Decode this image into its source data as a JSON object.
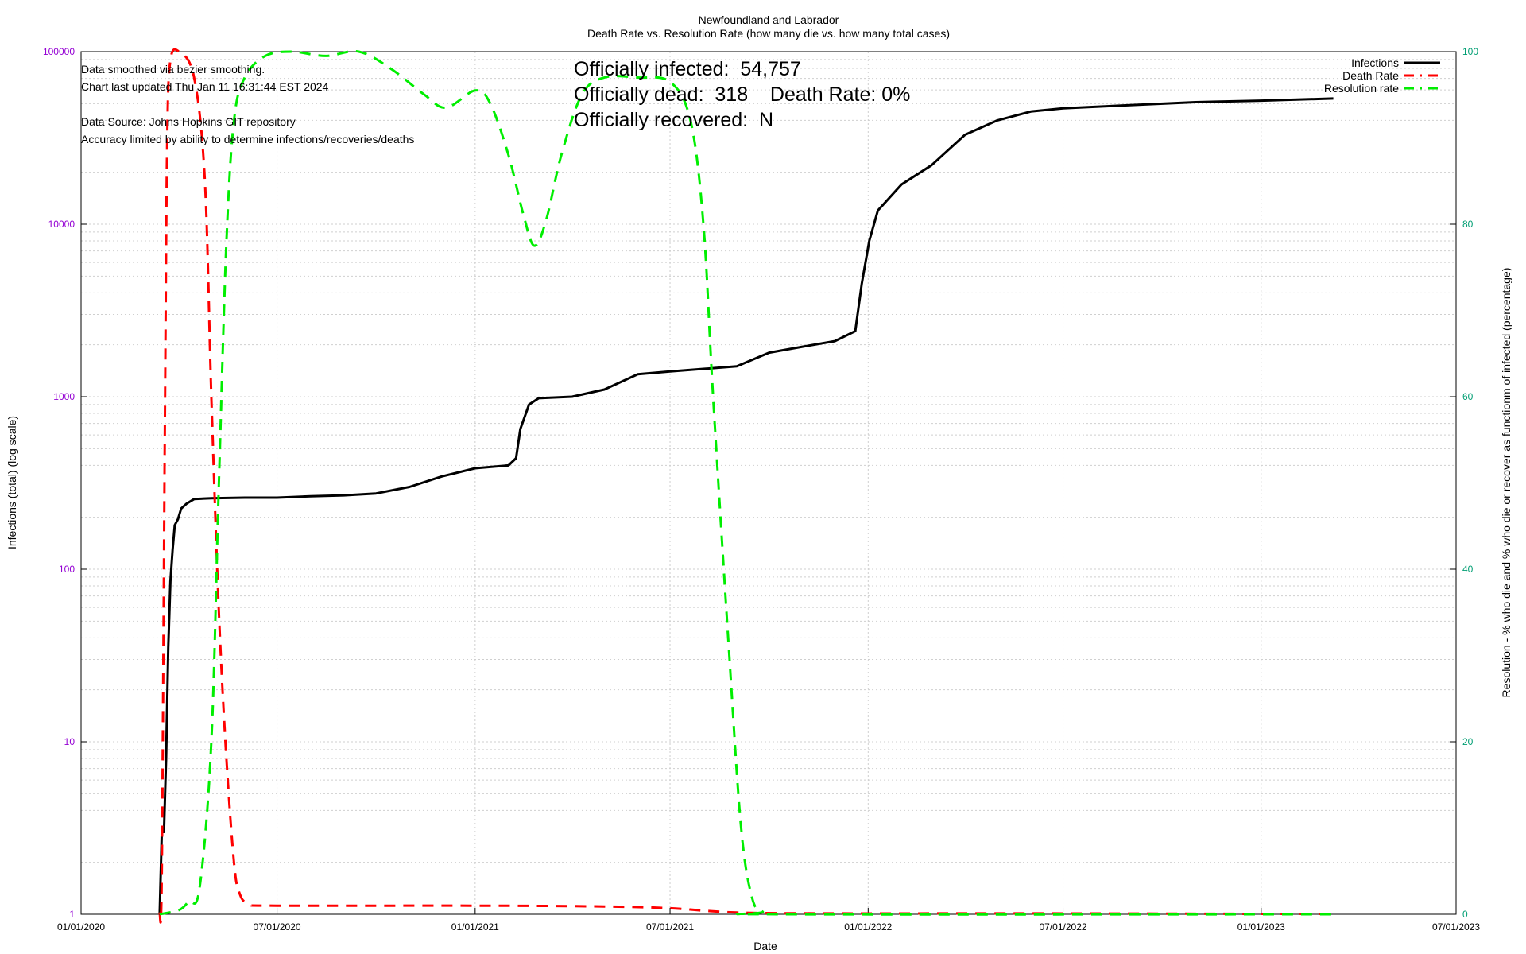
{
  "chart_data": {
    "type": "line",
    "title": "Newfoundland and Labrador",
    "subtitle": "Death Rate vs. Resolution Rate (how many die vs. how many total cases)",
    "xlabel": "Date",
    "ylabel_left": "Infections (total) (log scale)",
    "ylabel_right": "Resolution - % who die and % who die or recover as functionm of infected (percentage)",
    "x_ticks": [
      "01/01/2020",
      "07/01/2020",
      "01/01/2021",
      "07/01/2021",
      "01/01/2022",
      "07/01/2022",
      "01/01/2023",
      "07/01/2023"
    ],
    "x_range": [
      "01/01/2020",
      "07/01/2023"
    ],
    "y_left_ticks": [
      "1",
      "10",
      "100",
      "1000",
      "10000",
      "100000"
    ],
    "y_left_range": [
      1,
      100000
    ],
    "y_left_scale": "log",
    "y_right_ticks": [
      "0",
      "20",
      "40",
      "60",
      "80",
      "100"
    ],
    "y_right_range": [
      0,
      100
    ],
    "grid": true,
    "legend_position": "top-right",
    "annotations": [
      "Data smoothed via bezier smoothing.",
      "Chart last updated Thu Jan 11 16:31:44 EST 2024",
      "Data Source: Johns Hopkins GIT repository",
      "Accuracy limited by ability to determine infections/recoveries/deaths"
    ],
    "stats": [
      "Officially infected:  54,757",
      "Officially dead:  318    Death Rate: 0%",
      "Officially recovered:  N"
    ],
    "series": [
      {
        "name": "Infections",
        "color": "#000000",
        "dash": "solid",
        "axis": "left",
        "points": [
          [
            "2020-03-14",
            1
          ],
          [
            "2020-03-16",
            3
          ],
          [
            "2020-03-18",
            3
          ],
          [
            "2020-03-20",
            8
          ],
          [
            "2020-03-22",
            35
          ],
          [
            "2020-03-24",
            85
          ],
          [
            "2020-03-26",
            130
          ],
          [
            "2020-03-28",
            180
          ],
          [
            "2020-03-31",
            195
          ],
          [
            "2020-04-03",
            225
          ],
          [
            "2020-04-08",
            240
          ],
          [
            "2020-04-15",
            255
          ],
          [
            "2020-05-01",
            258
          ],
          [
            "2020-06-01",
            260
          ],
          [
            "2020-07-01",
            260
          ],
          [
            "2020-08-01",
            265
          ],
          [
            "2020-09-01",
            268
          ],
          [
            "2020-10-01",
            275
          ],
          [
            "2020-11-01",
            300
          ],
          [
            "2020-12-01",
            345
          ],
          [
            "2021-01-01",
            385
          ],
          [
            "2021-02-01",
            400
          ],
          [
            "2021-02-08",
            440
          ],
          [
            "2021-02-12",
            650
          ],
          [
            "2021-02-20",
            900
          ],
          [
            "2021-03-01",
            980
          ],
          [
            "2021-04-01",
            1000
          ],
          [
            "2021-05-01",
            1100
          ],
          [
            "2021-06-01",
            1350
          ],
          [
            "2021-07-01",
            1400
          ],
          [
            "2021-08-01",
            1450
          ],
          [
            "2021-09-01",
            1500
          ],
          [
            "2021-10-01",
            1800
          ],
          [
            "2021-11-01",
            1950
          ],
          [
            "2021-12-01",
            2100
          ],
          [
            "2021-12-20",
            2400
          ],
          [
            "2021-12-26",
            4500
          ],
          [
            "2022-01-02",
            8000
          ],
          [
            "2022-01-10",
            12000
          ],
          [
            "2022-02-01",
            17000
          ],
          [
            "2022-03-01",
            22000
          ],
          [
            "2022-04-01",
            33000
          ],
          [
            "2022-05-01",
            40000
          ],
          [
            "2022-06-01",
            45000
          ],
          [
            "2022-07-01",
            47000
          ],
          [
            "2022-09-01",
            49000
          ],
          [
            "2022-11-01",
            51000
          ],
          [
            "2023-01-01",
            52000
          ],
          [
            "2023-03-09",
            53500
          ]
        ]
      },
      {
        "name": "Death Rate",
        "color": "#ff0000",
        "dash": "dashed",
        "axis": "right",
        "points": [
          [
            "2020-03-14",
            0
          ],
          [
            "2020-03-16",
            5
          ],
          [
            "2020-03-19",
            60
          ],
          [
            "2020-03-21",
            90
          ],
          [
            "2020-03-24",
            99
          ],
          [
            "2020-04-01",
            100
          ],
          [
            "2020-04-15",
            97
          ],
          [
            "2020-04-25",
            85
          ],
          [
            "2020-05-01",
            60
          ],
          [
            "2020-05-08",
            35
          ],
          [
            "2020-05-15",
            18
          ],
          [
            "2020-05-22",
            6
          ],
          [
            "2020-05-27",
            2.5
          ],
          [
            "2020-06-05",
            1.2
          ],
          [
            "2020-07-01",
            1
          ],
          [
            "2021-01-01",
            1
          ],
          [
            "2021-05-01",
            0.9
          ],
          [
            "2021-07-01",
            0.7
          ],
          [
            "2021-09-01",
            0.2
          ],
          [
            "2021-12-01",
            0.1
          ],
          [
            "2022-06-01",
            0.1
          ],
          [
            "2023-01-01",
            0.05
          ],
          [
            "2023-03-09",
            0.05
          ]
        ]
      },
      {
        "name": "Resolution rate",
        "color": "#00ee00",
        "dash": "dashed",
        "axis": "right",
        "points": [
          [
            "2020-03-14",
            0
          ],
          [
            "2020-04-01",
            0.5
          ],
          [
            "2020-04-10",
            1.5
          ],
          [
            "2020-04-20",
            3
          ],
          [
            "2020-05-01",
            20
          ],
          [
            "2020-05-08",
            50
          ],
          [
            "2020-05-15",
            78
          ],
          [
            "2020-05-22",
            92
          ],
          [
            "2020-06-01",
            97
          ],
          [
            "2020-06-20",
            99.5
          ],
          [
            "2020-07-15",
            100
          ],
          [
            "2020-08-15",
            99.5
          ],
          [
            "2020-09-15",
            100
          ],
          [
            "2020-10-15",
            98
          ],
          [
            "2020-11-15",
            95
          ],
          [
            "2020-12-05",
            93.5
          ],
          [
            "2021-01-01",
            95.5
          ],
          [
            "2021-01-15",
            94
          ],
          [
            "2021-02-01",
            88
          ],
          [
            "2021-02-15",
            81
          ],
          [
            "2021-02-25",
            77.5
          ],
          [
            "2021-03-08",
            80.5
          ],
          [
            "2021-03-22",
            88
          ],
          [
            "2021-04-10",
            95
          ],
          [
            "2021-05-01",
            97
          ],
          [
            "2021-06-01",
            97
          ],
          [
            "2021-07-01",
            96.5
          ],
          [
            "2021-07-20",
            92
          ],
          [
            "2021-08-01",
            80
          ],
          [
            "2021-08-10",
            60
          ],
          [
            "2021-08-25",
            30
          ],
          [
            "2021-09-05",
            10
          ],
          [
            "2021-09-15",
            2
          ],
          [
            "2021-09-25",
            0.3
          ],
          [
            "2021-10-15",
            0
          ],
          [
            "2023-03-09",
            0
          ]
        ]
      }
    ]
  }
}
